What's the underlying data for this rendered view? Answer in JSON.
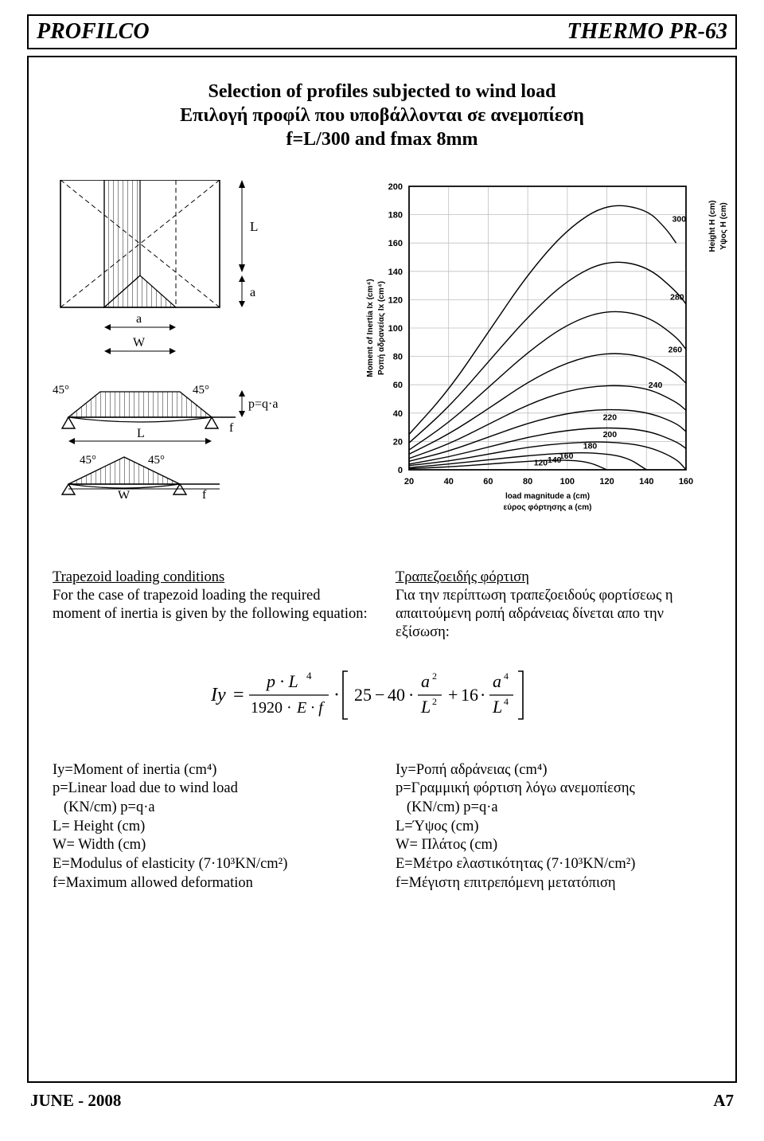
{
  "header": {
    "left": "PROFILCO",
    "right": "THERMO PR-63"
  },
  "title": {
    "line1": "Selection of profiles subjected to wind load",
    "line2": "Επιλογή προφίλ που υποβάλλονται σε ανεμοπίεση",
    "line3": "f=L/300 and fmax 8mm"
  },
  "diagrams": {
    "label_L": "L",
    "label_a": "a",
    "label_W": "W",
    "angle45": "45°",
    "pqa": "p=q·a",
    "f": "f"
  },
  "chart": {
    "type": "line",
    "background_color": "#ffffff",
    "grid_color": "#bfbfbf",
    "axis_color": "#000000",
    "line_color": "#000000",
    "line_width": 1.4,
    "xlim": [
      20,
      160
    ],
    "xtick_step": 20,
    "ylim": [
      0,
      200
    ],
    "ytick_step": 20,
    "xlabel1": "load magnitude a (cm)",
    "xlabel2": "εύρος φόρτησης a (cm)",
    "ylabel1": "Moment of Inertia Ix (cm⁴)",
    "ylabel2": "Ροπή αδρανείας Ix (cm⁴)",
    "rlabel1": "Height H (cm)",
    "rlabel2": "Υψος H (cm)",
    "label_fontsize": 10,
    "tick_fontsize": 11,
    "xticks": [
      20,
      40,
      60,
      80,
      100,
      120,
      140,
      160
    ],
    "yticks": [
      0,
      20,
      40,
      60,
      80,
      100,
      120,
      140,
      160,
      180,
      200
    ],
    "series": [
      {
        "label": "120",
        "label_at": [
          83,
          3
        ],
        "pts": [
          [
            20,
            0.8
          ],
          [
            40,
            2
          ],
          [
            60,
            4
          ],
          [
            80,
            6
          ],
          [
            95,
            7
          ],
          [
            110,
            6
          ],
          [
            120,
            0
          ]
        ]
      },
      {
        "label": "140",
        "label_at": [
          90,
          5
        ],
        "pts": [
          [
            20,
            1.5
          ],
          [
            40,
            4
          ],
          [
            60,
            7
          ],
          [
            80,
            10
          ],
          [
            100,
            12
          ],
          [
            115,
            12
          ],
          [
            130,
            9
          ],
          [
            140,
            0
          ]
        ]
      },
      {
        "label": "160",
        "label_at": [
          96,
          8
        ],
        "pts": [
          [
            20,
            3
          ],
          [
            40,
            6
          ],
          [
            60,
            11
          ],
          [
            80,
            16
          ],
          [
            100,
            19
          ],
          [
            120,
            20
          ],
          [
            140,
            17
          ],
          [
            155,
            8
          ],
          [
            160,
            0
          ]
        ]
      },
      {
        "label": "180",
        "label_at": [
          108,
          15
        ],
        "pts": [
          [
            20,
            4
          ],
          [
            40,
            9
          ],
          [
            60,
            16
          ],
          [
            80,
            23
          ],
          [
            100,
            28
          ],
          [
            120,
            30
          ],
          [
            140,
            28
          ],
          [
            155,
            20
          ],
          [
            160,
            15
          ]
        ]
      },
      {
        "label": "200",
        "label_at": [
          118,
          23
        ],
        "pts": [
          [
            20,
            6
          ],
          [
            40,
            13
          ],
          [
            60,
            23
          ],
          [
            80,
            33
          ],
          [
            100,
            40
          ],
          [
            120,
            43
          ],
          [
            140,
            41
          ],
          [
            155,
            33
          ],
          [
            160,
            27
          ]
        ]
      },
      {
        "label": "220",
        "label_at": [
          118,
          35
        ],
        "pts": [
          [
            20,
            8
          ],
          [
            40,
            18
          ],
          [
            60,
            32
          ],
          [
            80,
            46
          ],
          [
            100,
            56
          ],
          [
            120,
            60
          ],
          [
            140,
            58
          ],
          [
            155,
            48
          ],
          [
            160,
            42
          ]
        ]
      },
      {
        "label": "240",
        "label_at": [
          141,
          58
        ],
        "pts": [
          [
            20,
            11
          ],
          [
            40,
            25
          ],
          [
            60,
            43
          ],
          [
            80,
            62
          ],
          [
            100,
            76
          ],
          [
            120,
            83
          ],
          [
            140,
            80
          ],
          [
            155,
            68
          ],
          [
            160,
            61
          ]
        ]
      },
      {
        "label": "260",
        "label_at": [
          151,
          83
        ],
        "pts": [
          [
            20,
            14
          ],
          [
            40,
            33
          ],
          [
            60,
            58
          ],
          [
            80,
            83
          ],
          [
            100,
            103
          ],
          [
            120,
            113
          ],
          [
            140,
            109
          ],
          [
            155,
            94
          ],
          [
            160,
            85
          ]
        ]
      },
      {
        "label": "280",
        "label_at": [
          152,
          120
        ],
        "pts": [
          [
            20,
            19
          ],
          [
            40,
            44
          ],
          [
            60,
            76
          ],
          [
            80,
            108
          ],
          [
            100,
            134
          ],
          [
            120,
            148
          ],
          [
            140,
            144
          ],
          [
            155,
            126
          ],
          [
            160,
            117
          ]
        ]
      },
      {
        "label": "300",
        "label_at": [
          153,
          175
        ],
        "pts": [
          [
            20,
            25
          ],
          [
            40,
            56
          ],
          [
            60,
            97
          ],
          [
            80,
            138
          ],
          [
            100,
            170
          ],
          [
            120,
            188
          ],
          [
            140,
            184
          ],
          [
            150,
            170
          ],
          [
            155,
            160
          ]
        ]
      }
    ]
  },
  "body": {
    "en_head": "Trapezoid loading conditions",
    "en_text": "For the case of trapezoid loading the required moment of inertia is given by the following equation:",
    "gr_head": "Τραπεζοειδής φόρτιση",
    "gr_text": "Για την περίπτωση τραπεζοειδούς φορτίσεως η απαιτούμενη ροπή αδράνειας δίνεται απο την εξίσωση:"
  },
  "formula": {
    "Iy": "Iy",
    "eq": "=",
    "num1": "p · L",
    "exp_num1": "4",
    "den1": "1920 · E · f",
    "dot": "·",
    "t25": "25",
    "minus": "−",
    "t40": "40",
    "a2": "a",
    "e2": "2",
    "L2": "L",
    "plus": "+",
    "t16": "16",
    "a4": "a",
    "e4": "4",
    "L4": "L"
  },
  "defs": {
    "en": [
      "Iy=Moment of inertia (cm⁴)",
      "p=Linear load due to wind load",
      "   (KN/cm) p=q·a",
      "L= Height (cm)",
      "W= Width (cm)",
      "E=Modulus of elasticity (7·10³KN/cm²)",
      "f=Maximum allowed deformation"
    ],
    "gr": [
      "Iy=Ροπή αδράνειας (cm⁴)",
      "p=Γραμμική φόρτιση λόγω ανεμοπίεσης",
      "   (KN/cm) p=q·a",
      "L=Ύψος (cm)",
      "W= Πλάτος (cm)",
      "E=Μέτρο ελαστικότητας (7·10³KN/cm²)",
      "f=Μέγιστη επιτρεπόμενη μετατόπιση"
    ]
  },
  "footer": {
    "left": "JUNE - 2008",
    "right": "A7"
  }
}
